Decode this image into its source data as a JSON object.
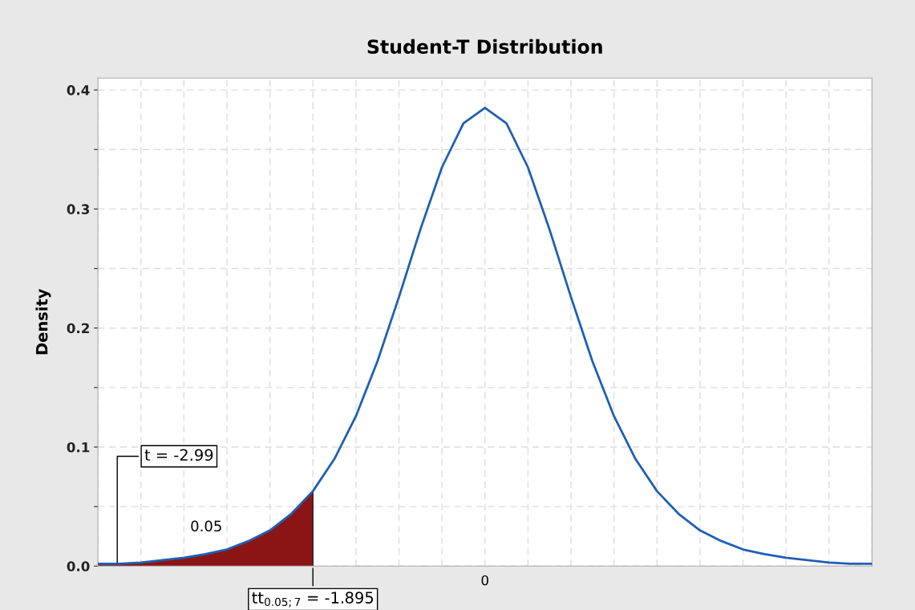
{
  "chart_data": {
    "type": "line",
    "title": "Student-T Distribution",
    "ylabel": "Density",
    "categories": [
      null,
      null,
      null,
      null,
      null,
      null,
      null,
      null,
      null,
      null,
      null,
      null,
      null,
      null,
      null,
      null,
      null,
      null,
      "0",
      null,
      null,
      null,
      null,
      null,
      null,
      null,
      null,
      null,
      null,
      null,
      null,
      null,
      null,
      null,
      null,
      null,
      null
    ],
    "ylim": [
      0,
      0.41
    ],
    "yticks": [
      {
        "value": 0,
        "label": "0.0"
      },
      {
        "value": 0.05,
        "label": null
      },
      {
        "value": 0.1,
        "label": "0.1"
      },
      {
        "value": 0.15,
        "label": null
      },
      {
        "value": 0.2,
        "label": "0.2"
      },
      {
        "value": 0.25,
        "label": null
      },
      {
        "value": 0.3,
        "label": "0.3"
      },
      {
        "value": 0.35,
        "label": null
      },
      {
        "value": 0.4,
        "label": "0.4"
      }
    ],
    "grid": true,
    "series": [
      {
        "color": "#1f5fb4",
        "values": [
          0.002,
          0.002,
          0.003,
          0.005,
          0.007,
          0.01,
          0.014,
          0.021,
          0.03,
          0.044,
          0.063,
          0.09,
          0.126,
          0.172,
          0.226,
          0.283,
          0.335,
          0.372,
          0.385,
          0.372,
          0.335,
          0.283,
          0.226,
          0.172,
          0.126,
          0.09,
          0.063,
          0.044,
          0.03,
          0.021,
          0.014,
          0.01,
          0.007,
          0.005,
          0.003,
          0.002,
          0.002
        ]
      },
      {
        "type": "area",
        "color": "#8b1414",
        "values": [
          0.002,
          0.002,
          0.003,
          0.005,
          0.007,
          0.01,
          0.014,
          0.021,
          0.03,
          0.044,
          0.063,
          null,
          null,
          null,
          null,
          null,
          null,
          null,
          null,
          null,
          null,
          null,
          null,
          null,
          null,
          null,
          null,
          null,
          null,
          null,
          null,
          null,
          null,
          null,
          null,
          null,
          null
        ]
      }
    ],
    "annotations": [
      "t = -2.99",
      "0.05",
      "tt$_{0.05;7}$ = -1.895"
    ]
  }
}
